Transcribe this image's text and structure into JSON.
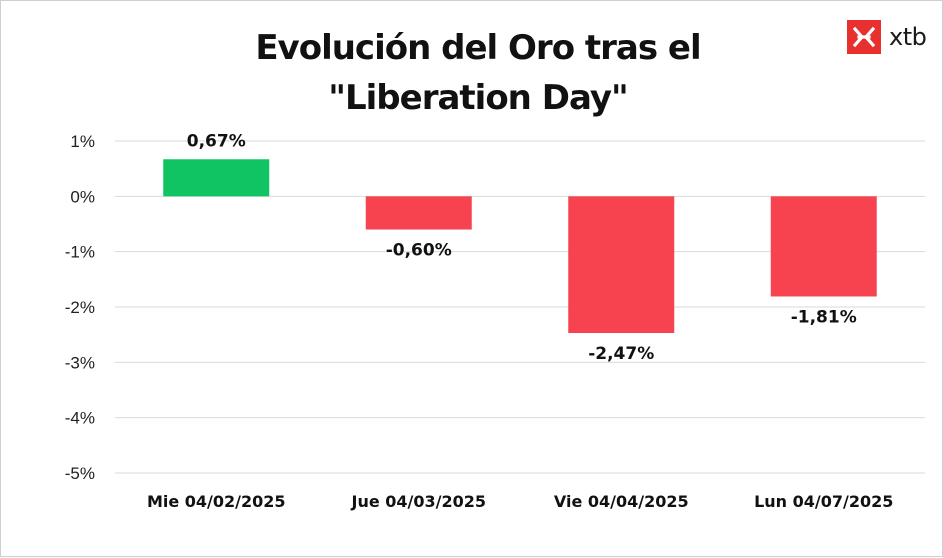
{
  "chart_data": {
    "type": "bar",
    "title_lines": [
      "Evolución del Oro tras el",
      "\"Liberation Day\""
    ],
    "categories": [
      "Mie 04/02/2025",
      "Jue 04/03/2025",
      "Vie 04/04/2025",
      "Lun 04/07/2025"
    ],
    "values": [
      0.67,
      -0.6,
      -2.47,
      -1.81
    ],
    "value_labels": [
      "0,67%",
      "-0,60%",
      "-2,47%",
      "-1,81%"
    ],
    "yticks": [
      1,
      0,
      -1,
      -2,
      -3,
      -4,
      -5
    ],
    "ytick_labels": [
      "1%",
      "0%",
      "-1%",
      "-2%",
      "-3%",
      "-4%",
      "-5%"
    ],
    "ylim": [
      -5,
      1
    ],
    "grid": true,
    "colors": {
      "positive": "#10c463",
      "negative": "#f7424f"
    }
  },
  "brand": {
    "name": "xtb",
    "color": "#e8312f"
  }
}
